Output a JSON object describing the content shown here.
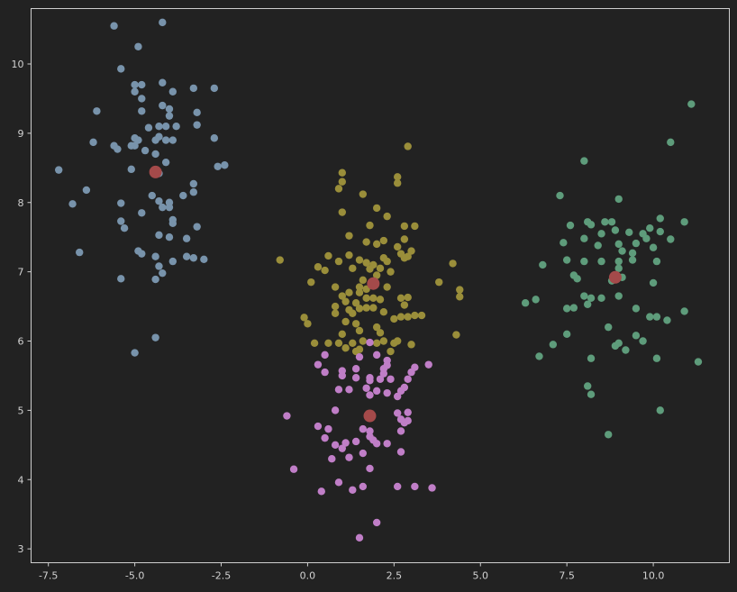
{
  "chart_data": {
    "type": "scatter",
    "title": "",
    "xlabel": "",
    "ylabel": "",
    "xlim": [
      -8.0,
      12.2
    ],
    "ylim": [
      2.8,
      10.8
    ],
    "grid": false,
    "x_ticks": [
      -7.5,
      -5.0,
      -2.5,
      0.0,
      2.5,
      5.0,
      7.5,
      10.0
    ],
    "x_tick_labels": [
      "-7.5",
      "-5.0",
      "-2.5",
      "0.0",
      "2.5",
      "5.0",
      "7.5",
      "10.0"
    ],
    "y_ticks": [
      3,
      4,
      5,
      6,
      7,
      8,
      9,
      10
    ],
    "y_tick_labels": [
      "3",
      "4",
      "5",
      "6",
      "7",
      "8",
      "9",
      "10"
    ],
    "series": [
      {
        "color": "#7893ab",
        "points": [
          [
            -4.2,
            10.6
          ],
          [
            -5.6,
            10.55
          ],
          [
            -4.9,
            10.25
          ],
          [
            -5.4,
            9.93
          ],
          [
            -4.2,
            9.73
          ],
          [
            -5.0,
            9.7
          ],
          [
            -4.8,
            9.7
          ],
          [
            -5.0,
            9.6
          ],
          [
            -4.8,
            9.5
          ],
          [
            -3.9,
            9.6
          ],
          [
            -3.3,
            9.65
          ],
          [
            -2.7,
            9.65
          ],
          [
            -6.1,
            9.32
          ],
          [
            -4.2,
            9.4
          ],
          [
            -4.0,
            9.35
          ],
          [
            -4.0,
            9.25
          ],
          [
            -4.8,
            9.32
          ],
          [
            -3.2,
            9.3
          ],
          [
            -3.2,
            9.12
          ],
          [
            -4.6,
            9.08
          ],
          [
            -4.3,
            9.1
          ],
          [
            -4.1,
            9.1
          ],
          [
            -3.8,
            9.1
          ],
          [
            -2.7,
            8.93
          ],
          [
            -5.0,
            8.93
          ],
          [
            -4.9,
            8.9
          ],
          [
            -4.4,
            8.9
          ],
          [
            -4.1,
            8.9
          ],
          [
            -3.9,
            8.9
          ],
          [
            -4.3,
            8.95
          ],
          [
            -6.2,
            8.87
          ],
          [
            -5.6,
            8.82
          ],
          [
            -5.5,
            8.77
          ],
          [
            -5.0,
            8.82
          ],
          [
            -5.1,
            8.82
          ],
          [
            -4.7,
            8.75
          ],
          [
            -4.4,
            8.7
          ],
          [
            -4.1,
            8.58
          ],
          [
            -2.6,
            8.52
          ],
          [
            -2.4,
            8.54
          ],
          [
            -7.2,
            8.47
          ],
          [
            -5.1,
            8.48
          ],
          [
            -4.3,
            8.42
          ],
          [
            -6.4,
            8.18
          ],
          [
            -3.3,
            8.27
          ],
          [
            -3.3,
            8.15
          ],
          [
            -4.5,
            8.1
          ],
          [
            -4.3,
            8.02
          ],
          [
            -4.0,
            8.0
          ],
          [
            -3.6,
            8.1
          ],
          [
            -6.8,
            7.98
          ],
          [
            -5.4,
            7.99
          ],
          [
            -4.2,
            7.93
          ],
          [
            -4.0,
            7.93
          ],
          [
            -4.8,
            7.85
          ],
          [
            -3.9,
            7.75
          ],
          [
            -3.9,
            7.7
          ],
          [
            -5.4,
            7.73
          ],
          [
            -5.3,
            7.63
          ],
          [
            -3.2,
            7.65
          ],
          [
            -4.3,
            7.53
          ],
          [
            -4.0,
            7.5
          ],
          [
            -3.5,
            7.48
          ],
          [
            -4.9,
            7.3
          ],
          [
            -4.8,
            7.26
          ],
          [
            -4.4,
            7.22
          ],
          [
            -3.5,
            7.22
          ],
          [
            -3.3,
            7.2
          ],
          [
            -3.0,
            7.18
          ],
          [
            -3.9,
            7.15
          ],
          [
            -4.3,
            7.08
          ],
          [
            -4.2,
            6.98
          ],
          [
            -6.6,
            7.28
          ],
          [
            -4.4,
            6.89
          ],
          [
            -5.4,
            6.9
          ],
          [
            -4.4,
            6.05
          ],
          [
            -5.0,
            5.83
          ]
        ]
      },
      {
        "color": "#9a8e3a",
        "points": [
          [
            2.9,
            8.81
          ],
          [
            1.0,
            8.43
          ],
          [
            2.6,
            8.37
          ],
          [
            1.0,
            8.3
          ],
          [
            2.6,
            8.28
          ],
          [
            0.9,
            8.2
          ],
          [
            1.6,
            8.12
          ],
          [
            2.0,
            7.92
          ],
          [
            1.0,
            7.86
          ],
          [
            2.3,
            7.8
          ],
          [
            1.8,
            7.67
          ],
          [
            2.8,
            7.66
          ],
          [
            3.1,
            7.66
          ],
          [
            1.2,
            7.52
          ],
          [
            2.2,
            7.45
          ],
          [
            2.8,
            7.47
          ],
          [
            1.7,
            7.43
          ],
          [
            2.0,
            7.4
          ],
          [
            2.6,
            7.36
          ],
          [
            3.0,
            7.3
          ],
          [
            2.7,
            7.26
          ],
          [
            1.2,
            7.24
          ],
          [
            2.9,
            7.22
          ],
          [
            2.2,
            7.2
          ],
          [
            0.6,
            7.23
          ],
          [
            0.9,
            7.15
          ],
          [
            1.5,
            7.17
          ],
          [
            -0.8,
            7.17
          ],
          [
            1.7,
            7.13
          ],
          [
            1.9,
            7.1
          ],
          [
            2.3,
            7.15
          ],
          [
            2.8,
            7.2
          ],
          [
            4.2,
            7.12
          ],
          [
            1.8,
            7.04
          ],
          [
            2.1,
            7.05
          ],
          [
            2.4,
            7.0
          ],
          [
            0.3,
            7.07
          ],
          [
            0.5,
            7.02
          ],
          [
            1.3,
            7.05
          ],
          [
            2.0,
            6.95
          ],
          [
            1.6,
            6.88
          ],
          [
            0.1,
            6.85
          ],
          [
            0.8,
            6.78
          ],
          [
            1.5,
            6.78
          ],
          [
            1.7,
            6.75
          ],
          [
            2.3,
            6.78
          ],
          [
            3.8,
            6.85
          ],
          [
            1.5,
            6.7
          ],
          [
            1.2,
            6.7
          ],
          [
            1.0,
            6.65
          ],
          [
            1.7,
            6.62
          ],
          [
            1.9,
            6.62
          ],
          [
            2.1,
            6.6
          ],
          [
            2.7,
            6.62
          ],
          [
            2.9,
            6.63
          ],
          [
            4.4,
            6.74
          ],
          [
            4.4,
            6.64
          ],
          [
            1.1,
            6.57
          ],
          [
            1.4,
            6.55
          ],
          [
            2.8,
            6.52
          ],
          [
            0.8,
            6.5
          ],
          [
            1.2,
            6.45
          ],
          [
            1.5,
            6.47
          ],
          [
            1.7,
            6.48
          ],
          [
            1.9,
            6.48
          ],
          [
            0.8,
            6.4
          ],
          [
            1.3,
            6.4
          ],
          [
            2.2,
            6.42
          ],
          [
            2.5,
            6.32
          ],
          [
            2.7,
            6.35
          ],
          [
            2.9,
            6.35
          ],
          [
            3.1,
            6.37
          ],
          [
            3.3,
            6.37
          ],
          [
            0.0,
            6.25
          ],
          [
            -0.1,
            6.34
          ],
          [
            1.1,
            6.28
          ],
          [
            1.4,
            6.25
          ],
          [
            2.0,
            6.2
          ],
          [
            1.5,
            6.15
          ],
          [
            2.1,
            6.12
          ],
          [
            1.0,
            6.1
          ],
          [
            4.3,
            6.09
          ],
          [
            2.2,
            6.0
          ],
          [
            0.2,
            5.97
          ],
          [
            0.6,
            5.97
          ],
          [
            0.9,
            5.97
          ],
          [
            1.3,
            5.97
          ],
          [
            1.6,
            6.0
          ],
          [
            2.0,
            5.97
          ],
          [
            2.5,
            5.97
          ],
          [
            2.6,
            6.0
          ],
          [
            3.0,
            5.95
          ],
          [
            1.1,
            5.9
          ],
          [
            1.5,
            5.88
          ],
          [
            2.4,
            5.85
          ],
          [
            1.4,
            5.85
          ]
        ]
      },
      {
        "color": "#c07ec7",
        "points": [
          [
            1.8,
            5.98
          ],
          [
            0.5,
            5.8
          ],
          [
            2.0,
            5.8
          ],
          [
            1.5,
            5.77
          ],
          [
            2.3,
            5.72
          ],
          [
            0.3,
            5.66
          ],
          [
            2.3,
            5.65
          ],
          [
            2.2,
            5.6
          ],
          [
            3.1,
            5.62
          ],
          [
            3.5,
            5.66
          ],
          [
            1.0,
            5.57
          ],
          [
            1.4,
            5.6
          ],
          [
            2.2,
            5.53
          ],
          [
            0.5,
            5.55
          ],
          [
            1.0,
            5.5
          ],
          [
            1.4,
            5.47
          ],
          [
            1.8,
            5.47
          ],
          [
            2.4,
            5.45
          ],
          [
            1.8,
            5.43
          ],
          [
            2.1,
            5.45
          ],
          [
            2.9,
            5.45
          ],
          [
            3.0,
            5.55
          ],
          [
            2.8,
            5.33
          ],
          [
            1.7,
            5.32
          ],
          [
            2.7,
            5.28
          ],
          [
            0.9,
            5.3
          ],
          [
            1.2,
            5.3
          ],
          [
            2.0,
            5.28
          ],
          [
            2.3,
            5.25
          ],
          [
            1.8,
            5.22
          ],
          [
            2.6,
            5.2
          ],
          [
            0.8,
            5.0
          ],
          [
            2.6,
            4.96
          ],
          [
            2.9,
            4.97
          ],
          [
            -0.6,
            4.92
          ],
          [
            2.7,
            4.87
          ],
          [
            2.9,
            4.85
          ],
          [
            2.8,
            4.82
          ],
          [
            0.3,
            4.77
          ],
          [
            0.6,
            4.73
          ],
          [
            1.6,
            4.73
          ],
          [
            1.8,
            4.7
          ],
          [
            2.7,
            4.7
          ],
          [
            1.8,
            4.62
          ],
          [
            0.5,
            4.6
          ],
          [
            1.9,
            4.57
          ],
          [
            1.4,
            4.55
          ],
          [
            1.1,
            4.53
          ],
          [
            2.0,
            4.52
          ],
          [
            2.3,
            4.52
          ],
          [
            0.8,
            4.5
          ],
          [
            1.0,
            4.45
          ],
          [
            2.7,
            4.4
          ],
          [
            0.7,
            4.3
          ],
          [
            1.2,
            4.32
          ],
          [
            1.6,
            4.38
          ],
          [
            1.8,
            4.16
          ],
          [
            -0.4,
            4.15
          ],
          [
            0.9,
            3.96
          ],
          [
            1.3,
            3.85
          ],
          [
            1.6,
            3.9
          ],
          [
            2.6,
            3.9
          ],
          [
            3.1,
            3.9
          ],
          [
            3.6,
            3.88
          ],
          [
            0.4,
            3.83
          ],
          [
            2.0,
            3.38
          ],
          [
            1.5,
            3.16
          ]
        ]
      },
      {
        "color": "#5e9c7b",
        "points": [
          [
            11.1,
            9.42
          ],
          [
            10.5,
            8.87
          ],
          [
            8.0,
            8.6
          ],
          [
            7.3,
            8.1
          ],
          [
            9.0,
            8.05
          ],
          [
            10.2,
            7.77
          ],
          [
            10.9,
            7.72
          ],
          [
            8.1,
            7.72
          ],
          [
            8.6,
            7.72
          ],
          [
            8.8,
            7.72
          ],
          [
            8.2,
            7.68
          ],
          [
            7.6,
            7.67
          ],
          [
            9.9,
            7.63
          ],
          [
            8.9,
            7.6
          ],
          [
            8.5,
            7.55
          ],
          [
            9.3,
            7.57
          ],
          [
            9.7,
            7.55
          ],
          [
            10.2,
            7.58
          ],
          [
            8.0,
            7.48
          ],
          [
            9.8,
            7.48
          ],
          [
            10.5,
            7.47
          ],
          [
            9.5,
            7.41
          ],
          [
            7.4,
            7.42
          ],
          [
            9.0,
            7.4
          ],
          [
            8.4,
            7.38
          ],
          [
            10.0,
            7.35
          ],
          [
            9.1,
            7.3
          ],
          [
            9.4,
            7.27
          ],
          [
            7.5,
            7.17
          ],
          [
            8.0,
            7.15
          ],
          [
            8.5,
            7.15
          ],
          [
            9.0,
            7.15
          ],
          [
            9.4,
            7.17
          ],
          [
            10.1,
            7.15
          ],
          [
            6.8,
            7.1
          ],
          [
            9.0,
            7.05
          ],
          [
            7.7,
            6.95
          ],
          [
            7.8,
            6.9
          ],
          [
            8.8,
            6.87
          ],
          [
            9.1,
            6.92
          ],
          [
            10.0,
            6.84
          ],
          [
            8.0,
            6.65
          ],
          [
            8.2,
            6.62
          ],
          [
            8.5,
            6.62
          ],
          [
            9.0,
            6.65
          ],
          [
            6.3,
            6.55
          ],
          [
            6.6,
            6.6
          ],
          [
            8.1,
            6.53
          ],
          [
            7.5,
            6.47
          ],
          [
            7.7,
            6.48
          ],
          [
            9.5,
            6.47
          ],
          [
            10.9,
            6.43
          ],
          [
            9.9,
            6.35
          ],
          [
            10.1,
            6.35
          ],
          [
            10.4,
            6.3
          ],
          [
            8.7,
            6.2
          ],
          [
            7.5,
            6.1
          ],
          [
            9.5,
            6.08
          ],
          [
            9.7,
            6.0
          ],
          [
            9.0,
            5.97
          ],
          [
            8.9,
            5.93
          ],
          [
            9.2,
            5.87
          ],
          [
            7.1,
            5.95
          ],
          [
            6.7,
            5.78
          ],
          [
            8.2,
            5.75
          ],
          [
            10.1,
            5.75
          ],
          [
            11.3,
            5.7
          ],
          [
            8.1,
            5.35
          ],
          [
            8.2,
            5.23
          ],
          [
            10.2,
            5.0
          ],
          [
            8.7,
            4.65
          ]
        ]
      }
    ],
    "centers": {
      "color": "#a44a4a",
      "points": [
        [
          -4.4,
          8.44
        ],
        [
          1.9,
          6.83
        ],
        [
          1.8,
          4.92
        ],
        [
          8.9,
          6.92
        ]
      ]
    }
  }
}
